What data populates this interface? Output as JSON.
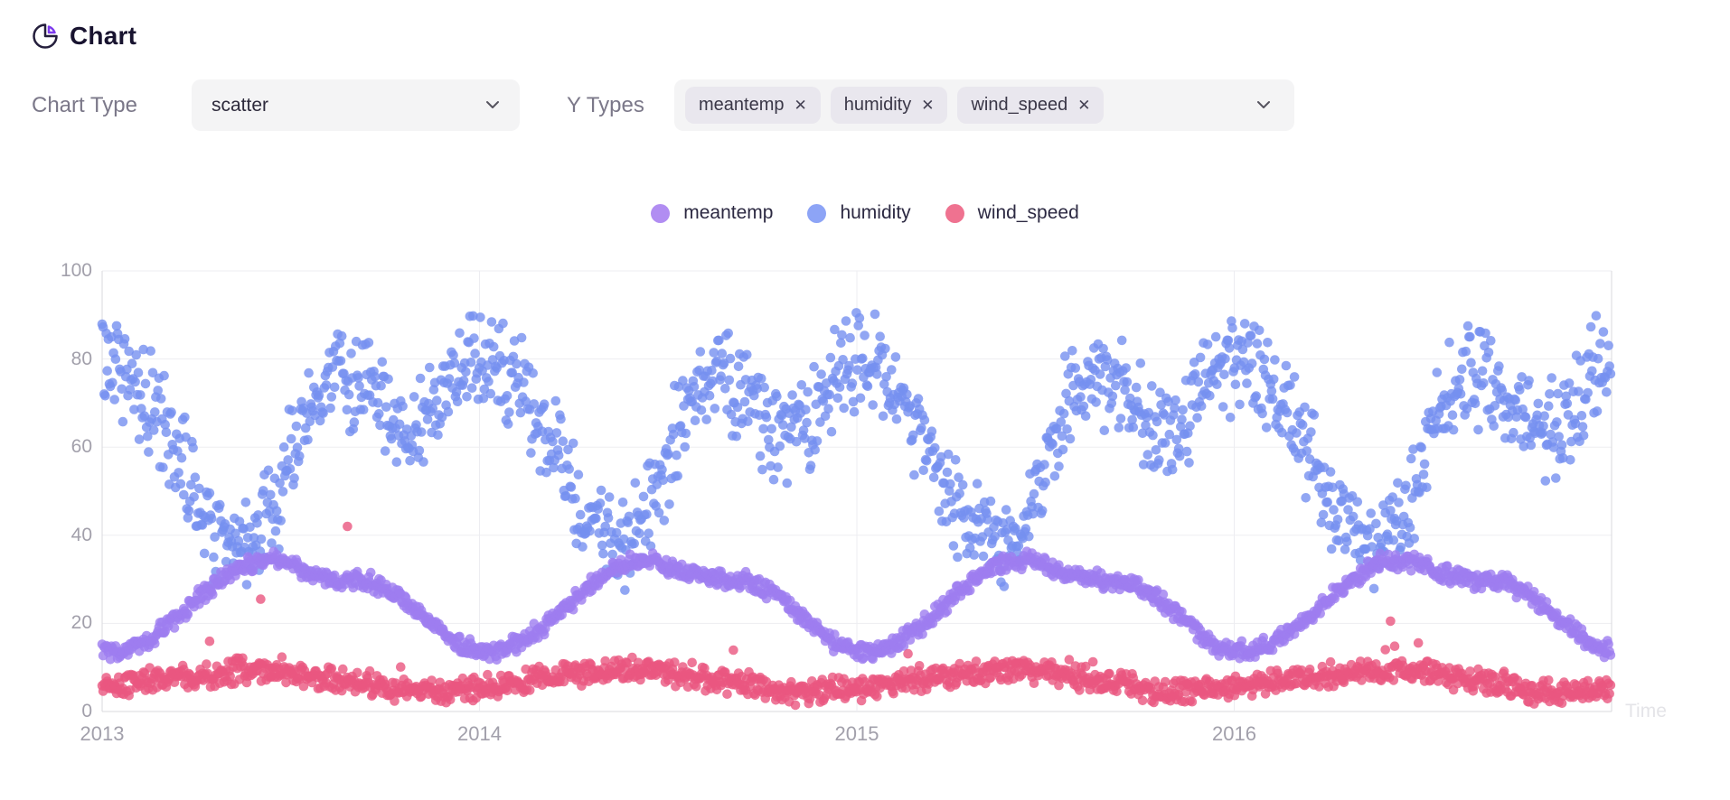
{
  "header": {
    "title": "Chart"
  },
  "controls": {
    "chart_type_label": "Chart Type",
    "chart_type_value": "scatter",
    "y_types_label": "Y Types",
    "chips": [
      {
        "label": "meantemp"
      },
      {
        "label": "humidity"
      },
      {
        "label": "wind_speed"
      }
    ],
    "remove_icon": "✕"
  },
  "legend": [
    {
      "name": "meantemp",
      "color": "#b18df2"
    },
    {
      "name": "humidity",
      "color": "#8da4f6"
    },
    {
      "name": "wind_speed",
      "color": "#ef7290"
    }
  ],
  "colors": {
    "accent": "#7c3aed",
    "title_text": "#18132f",
    "grid": "#ededf1",
    "axis": "#d9d9de",
    "tick_text": "#a2a0ab",
    "axis_name_text": "#e4e4e8"
  },
  "chart_data": {
    "type": "scatter",
    "xlabel": "Time",
    "ylabel": "",
    "x_ticks": [
      "2013",
      "2014",
      "2015",
      "2016"
    ],
    "x_range_years": [
      2013.0,
      2017.0
    ],
    "y_ticks": [
      0,
      20,
      40,
      60,
      80,
      100
    ],
    "ylim": [
      0,
      100
    ],
    "grid": true,
    "legend_position": "top-center",
    "sampling": "daily points, 2013-01-01 through 2016-12-31 (1461 per series)",
    "dot_radius_px": 5.3,
    "dot_opacity": 0.8,
    "series": [
      {
        "name": "meantemp",
        "dot_color": "#9d7df0",
        "z": 1,
        "monthly_mean": [
          13.5,
          16.5,
          22,
          28.5,
          33.5,
          34.5,
          31.5,
          30,
          29.5,
          26,
          20,
          14.5
        ],
        "spread": 2.3,
        "clamp": [
          8.5,
          38.8
        ],
        "spike_chance": 0,
        "spike_max": 0,
        "outliers": []
      },
      {
        "name": "humidity",
        "dot_color": "#7590f0",
        "z": 0,
        "monthly_mean": [
          80,
          70,
          57,
          42,
          38,
          46,
          68,
          77,
          72,
          62,
          66,
          79
        ],
        "spread": 13.5,
        "clamp": [
          13,
          98
        ],
        "spike_chance": 0,
        "spike_max": 0,
        "outliers": []
      },
      {
        "name": "wind_speed",
        "dot_color": "#ea567f",
        "z": 2,
        "monthly_mean": [
          5.5,
          7,
          8,
          8.5,
          9.5,
          9.5,
          8.5,
          7,
          6.5,
          4.5,
          4.5,
          5.5
        ],
        "spread": 3.2,
        "clamp": [
          0.3,
          24
        ],
        "spike_chance": 0.012,
        "spike_max": 9,
        "outliers": [
          {
            "t": 2013.65,
            "v": 42
          },
          {
            "t": 2013.42,
            "v": 25.5
          }
        ]
      }
    ]
  }
}
